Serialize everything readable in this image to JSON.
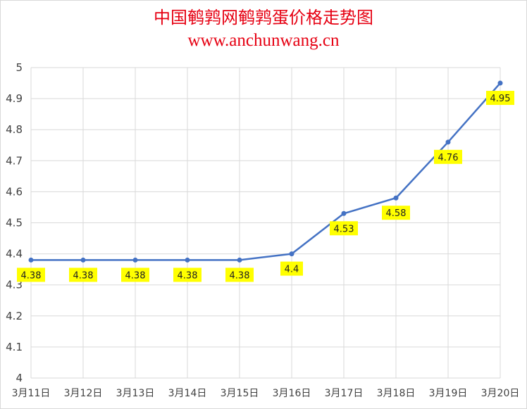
{
  "chart_data": {
    "type": "line",
    "title": "中国鹌鹑网鹌鹑蛋价格走势图",
    "subtitle": "www.anchunwang.cn",
    "categories": [
      "3月11日",
      "3月12日",
      "3月13日",
      "3月14日",
      "3月15日",
      "3月16日",
      "3月17日",
      "3月18日",
      "3月19日",
      "3月20日"
    ],
    "series": [
      {
        "values": [
          4.38,
          4.38,
          4.38,
          4.38,
          4.38,
          4.4,
          4.53,
          4.58,
          4.76,
          4.95
        ]
      }
    ],
    "data_labels": [
      "4.38",
      "4.38",
      "4.38",
      "4.38",
      "4.38",
      "4.4",
      "4.53",
      "4.58",
      "4.76",
      "4.95"
    ],
    "ylim": [
      4,
      5
    ],
    "yticks": [
      "4",
      "4.1",
      "4.2",
      "4.3",
      "4.4",
      "4.5",
      "4.6",
      "4.7",
      "4.8",
      "4.9",
      "5"
    ],
    "grid": true,
    "legend": "none",
    "colors": {
      "line": "#4472c4",
      "label_bg": "#ffff00",
      "title": "#e60012",
      "grid": "#d9d9d9"
    }
  }
}
